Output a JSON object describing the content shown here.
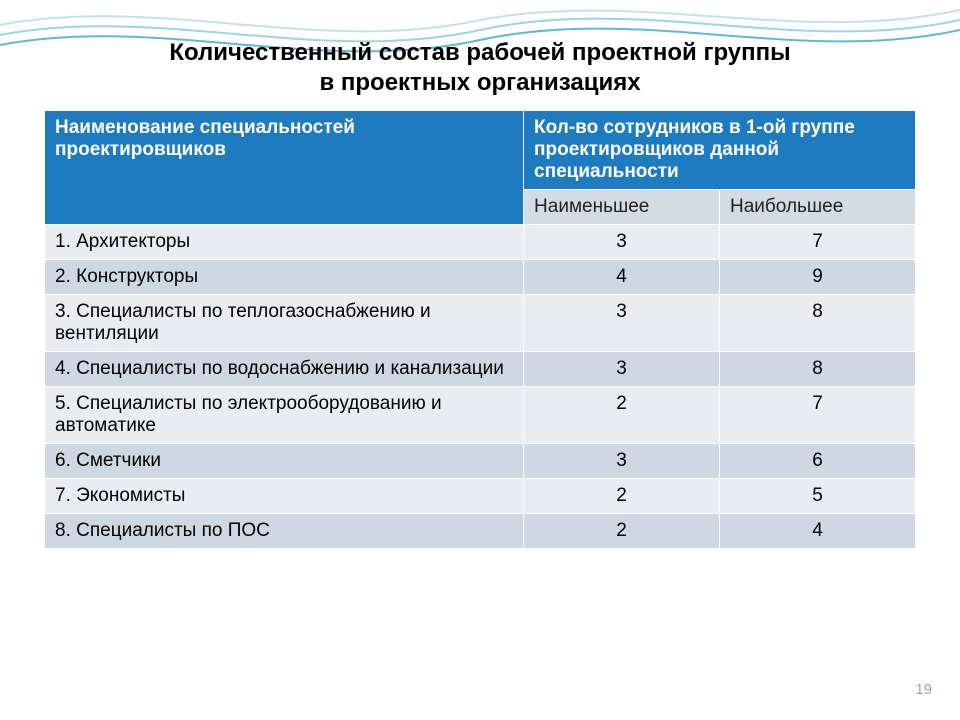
{
  "title_line1": "Количественный состав рабочей проектной группы",
  "title_line2": "в  проектных организациях",
  "title_fontsize": 24,
  "table": {
    "col1_width_pct": 55,
    "col2_width_pct": 22.5,
    "col3_width_pct": 22.5,
    "header": {
      "col1": "Наименование специальностей проектировщиков",
      "col2": "Кол-во сотрудников в 1-ой группе проектировщиков данной специальности",
      "bg_color": "#1e7bbf",
      "text_color": "#ffffff",
      "fontsize": 19
    },
    "subheader": {
      "min": "Наименьшее",
      "max": "Наибольшее",
      "bg_color": "#d3dbe4",
      "text_color": "#222222",
      "fontsize": 19
    },
    "body_fontsize": 19,
    "row_colors": {
      "odd": "#e9edf2",
      "even": "#ced8e2"
    },
    "border_color": "#ffffff",
    "rows": [
      {
        "label": "1. Архитекторы",
        "min": "3",
        "max": "7"
      },
      {
        "label": "2. Конструкторы",
        "min": "4",
        "max": "9"
      },
      {
        "label": "3. Специалисты по теплогазоснабжению и вентиляции",
        "min": "3",
        "max": "8"
      },
      {
        "label": "4. Специалисты по водоснабжению и канализации",
        "min": "3",
        "max": "8"
      },
      {
        "label": "5. Специалисты по электрооборудованию и автоматике",
        "min": "2",
        "max": "7"
      },
      {
        "label": "6. Сметчики",
        "min": "3",
        "max": "6"
      },
      {
        "label": "7. Экономисты",
        "min": "2",
        "max": "5"
      },
      {
        "label": "8. Специалисты по ПОС",
        "min": "2",
        "max": "4"
      }
    ]
  },
  "page_number": "19",
  "page_number_color": "#8aa9c4",
  "background_wave": {
    "stroke_colors": [
      "#9ad6e8",
      "#5fb8d6",
      "#bfe4ee"
    ],
    "stroke_width": 2
  }
}
